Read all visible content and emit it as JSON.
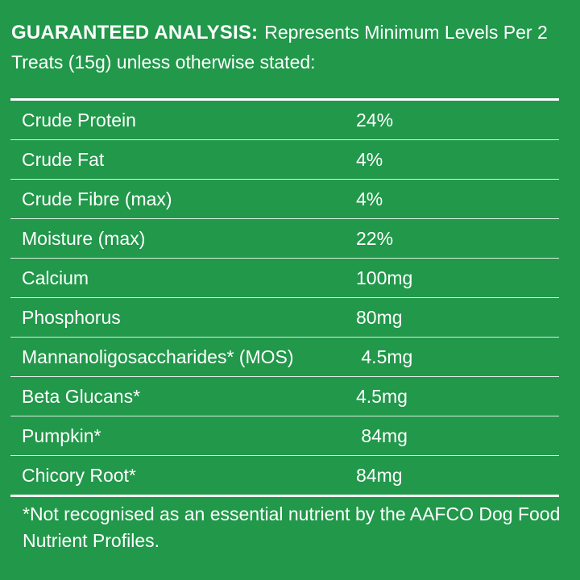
{
  "header": {
    "title": "GUARANTEED ANALYSIS:",
    "subtitle": "Represents Minimum Levels Per 2 Treats (15g) unless otherwise stated:"
  },
  "analysis": {
    "rows": [
      {
        "name": "Crude Protein",
        "value": "24%"
      },
      {
        "name": "Crude Fat",
        "value": "4%"
      },
      {
        "name": "Crude Fibre (max)",
        "value": "4%"
      },
      {
        "name": "Moisture (max)",
        "value": "22%"
      },
      {
        "name": "Calcium",
        "value": "100mg"
      },
      {
        "name": "Phosphorus",
        "value": "80mg"
      },
      {
        "name": "Mannanoligosaccharides* (MOS)",
        "value": " 4.5mg"
      },
      {
        "name": "Beta Glucans*",
        "value": "4.5mg"
      },
      {
        "name": "Pumpkin*",
        "value": " 84mg"
      },
      {
        "name": "Chicory Root*",
        "value": "84mg"
      }
    ]
  },
  "footnote": "*Not recognised as an essential nutrient by the AAFCO Dog Food Nutrient Profiles.",
  "colors": {
    "background": "#21984a",
    "text": "#ffffff"
  }
}
